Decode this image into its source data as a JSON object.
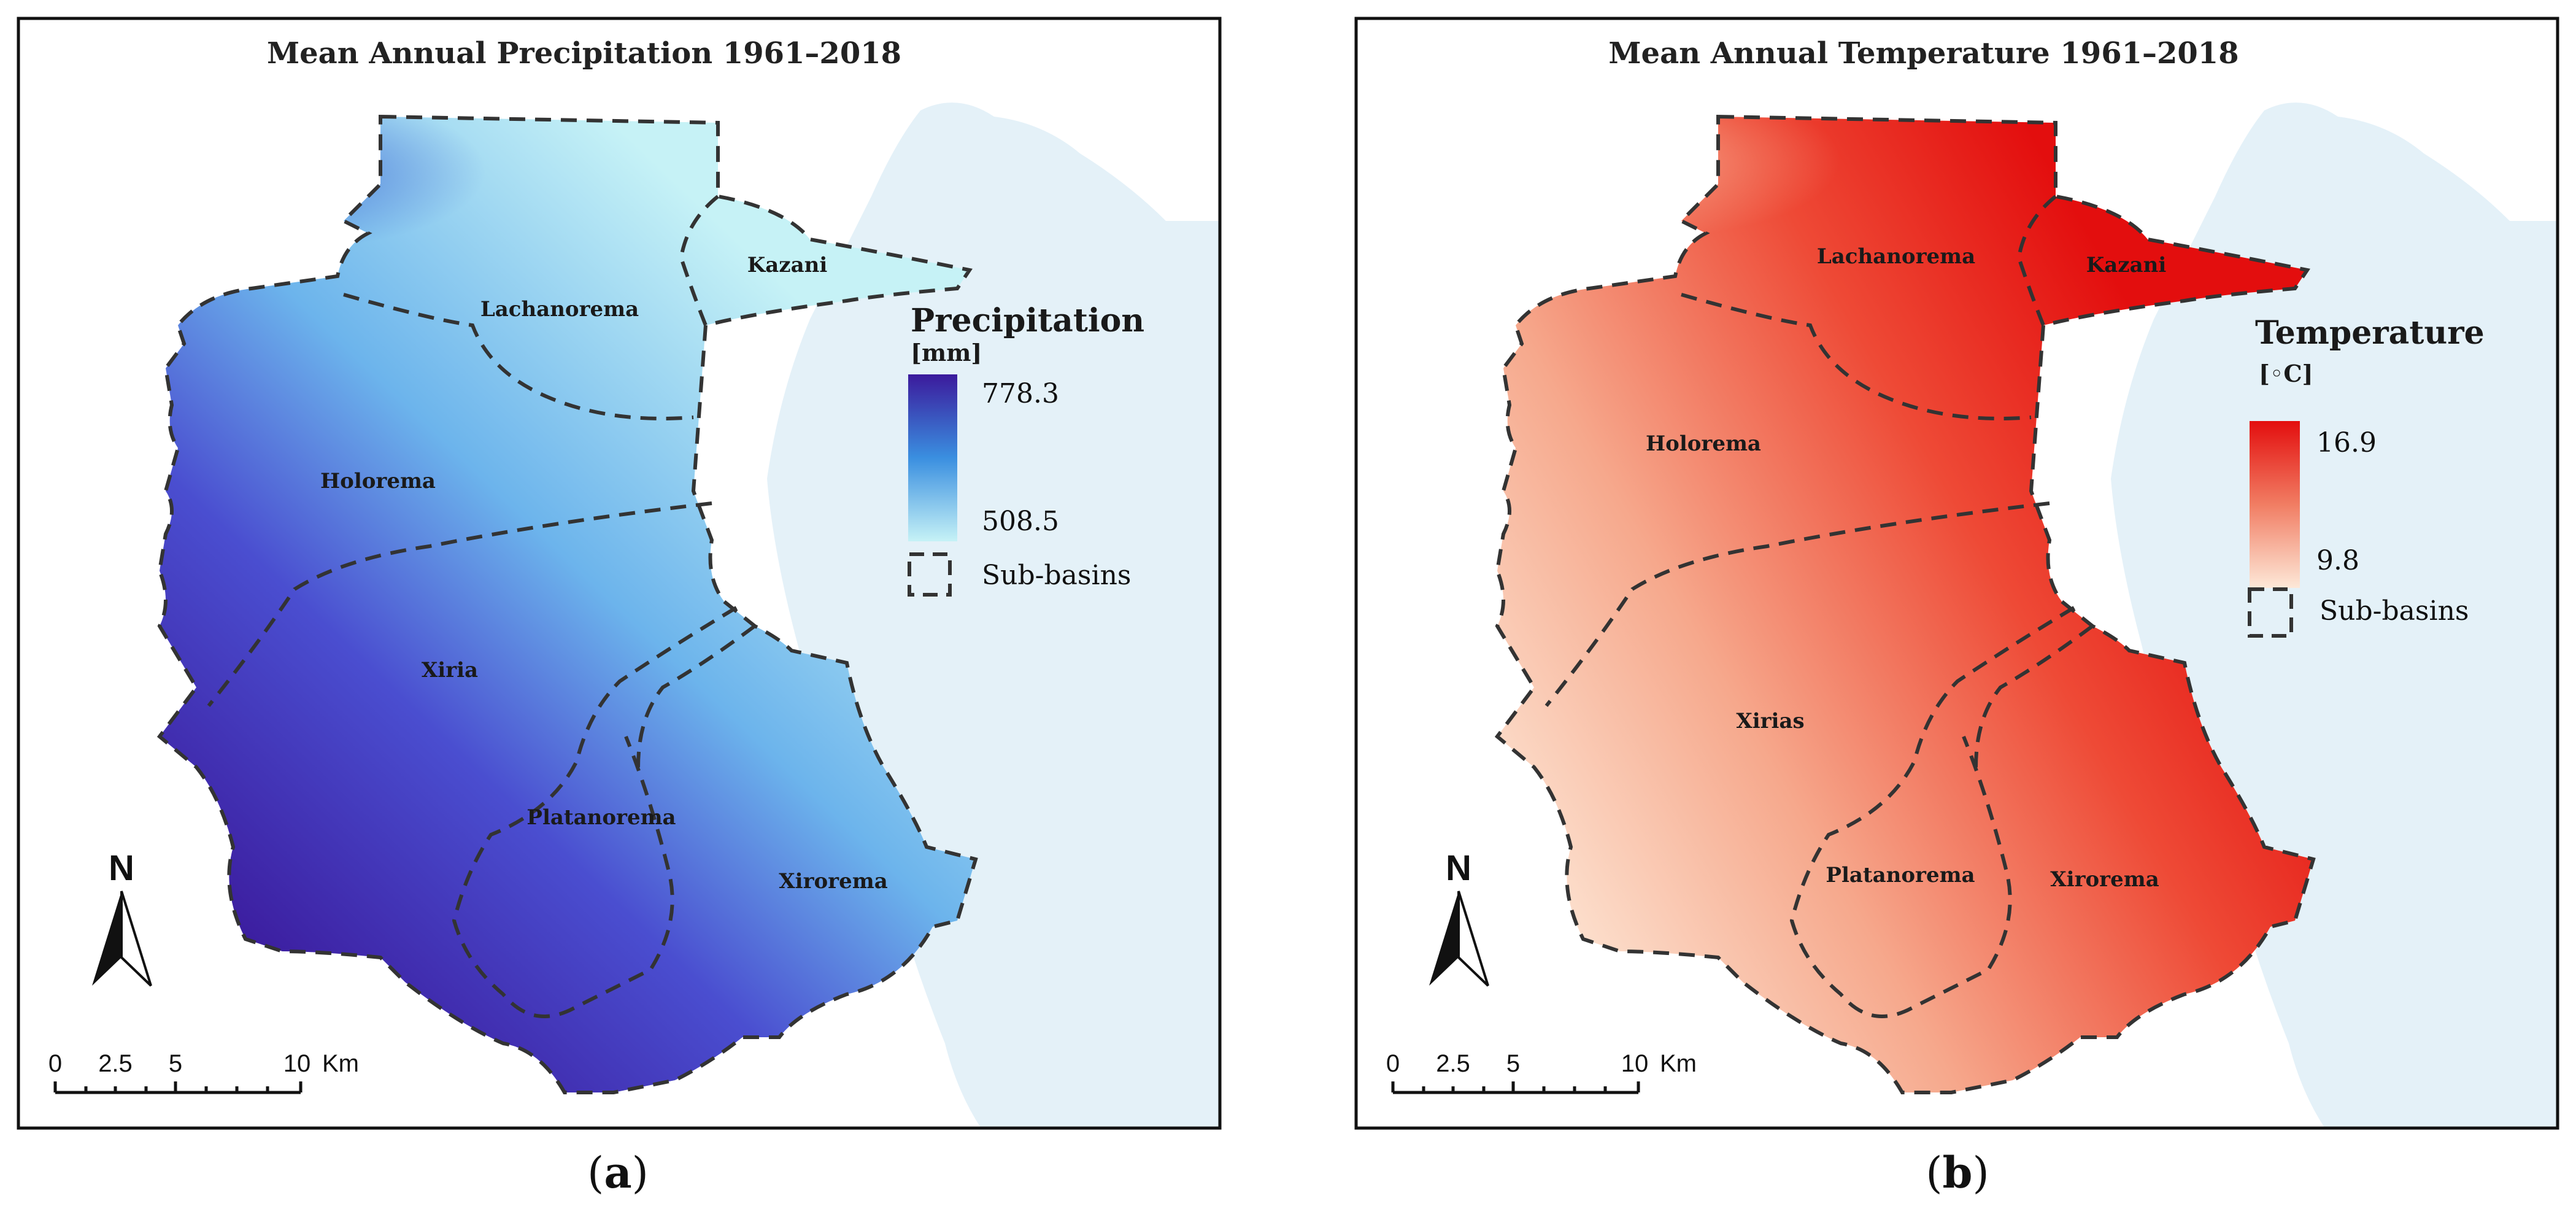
{
  "figure": {
    "panels": [
      {
        "id": "a",
        "title": "Mean Annual Precipitation 1961–2018",
        "legend": {
          "variable": "Precipitation",
          "unit": "[mm]",
          "max": "778.3",
          "min": "508.5",
          "boundary_label": "Sub-basins",
          "color_high": "#3b1a9c",
          "color_low": "#c6f2f6"
        },
        "subbasins": [
          "Lachanorema",
          "Kazani",
          "Holorema",
          "Xiria",
          "Platanorema",
          "Xirorema"
        ],
        "north": "N",
        "scale": {
          "ticks": [
            "0",
            "2.5",
            "5",
            "10"
          ],
          "unit": "Km"
        },
        "caption": "a"
      },
      {
        "id": "b",
        "title": "Mean Annual Temperature 1961–2018",
        "legend": {
          "variable": "Temperature",
          "unit": "[◦C]",
          "max": "16.9",
          "min": "9.8",
          "boundary_label": "Sub-basins",
          "color_high": "#e30e0e",
          "color_low": "#fde8d8"
        },
        "subbasins": [
          "Lachanorema",
          "Kazani",
          "Holorema",
          "Xirias",
          "Platanorema",
          "Xirorema"
        ],
        "north": "N",
        "scale": {
          "ticks": [
            "0",
            "2.5",
            "5",
            "10"
          ],
          "unit": "Km"
        },
        "caption": "b"
      }
    ],
    "colors": {
      "sea": "#e4f1f8",
      "frame": "#111111"
    }
  }
}
